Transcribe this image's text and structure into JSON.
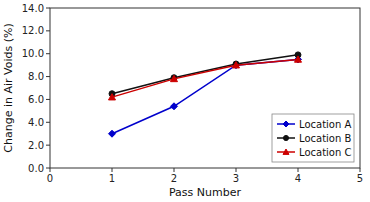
{
  "chart_data": {
    "type": "line",
    "xlabel": "Pass Number",
    "ylabel": "Change in Air Voids (%)",
    "x": [
      1,
      2,
      3,
      4
    ],
    "series": [
      {
        "name": "Location A",
        "color": "#0000CC",
        "marker": "diamond",
        "values": [
          3.0,
          5.4,
          9.0,
          9.5
        ]
      },
      {
        "name": "Location B",
        "color": "#111111",
        "marker": "circle",
        "values": [
          6.5,
          7.9,
          9.1,
          9.9
        ]
      },
      {
        "name": "Location C",
        "color": "#CC0000",
        "marker": "triangle",
        "values": [
          6.2,
          7.8,
          9.0,
          9.5
        ]
      }
    ],
    "xlim": [
      0,
      5
    ],
    "ylim": [
      0.0,
      14.0
    ],
    "xticks": [
      0,
      1,
      2,
      3,
      4,
      5
    ],
    "yticks": [
      {
        "value": 0.0,
        "label": "0.0"
      },
      {
        "value": 2.0,
        "label": "2.0"
      },
      {
        "value": 4.0,
        "label": "4.0"
      },
      {
        "value": 6.0,
        "label": "6.0"
      },
      {
        "value": 8.0,
        "label": "8.0"
      },
      {
        "value": 10.0,
        "label": "10.0"
      },
      {
        "value": 12.0,
        "label": "12.0"
      },
      {
        "value": 14.0,
        "label": "14.0"
      }
    ],
    "grid": false,
    "legend": "lower right"
  }
}
